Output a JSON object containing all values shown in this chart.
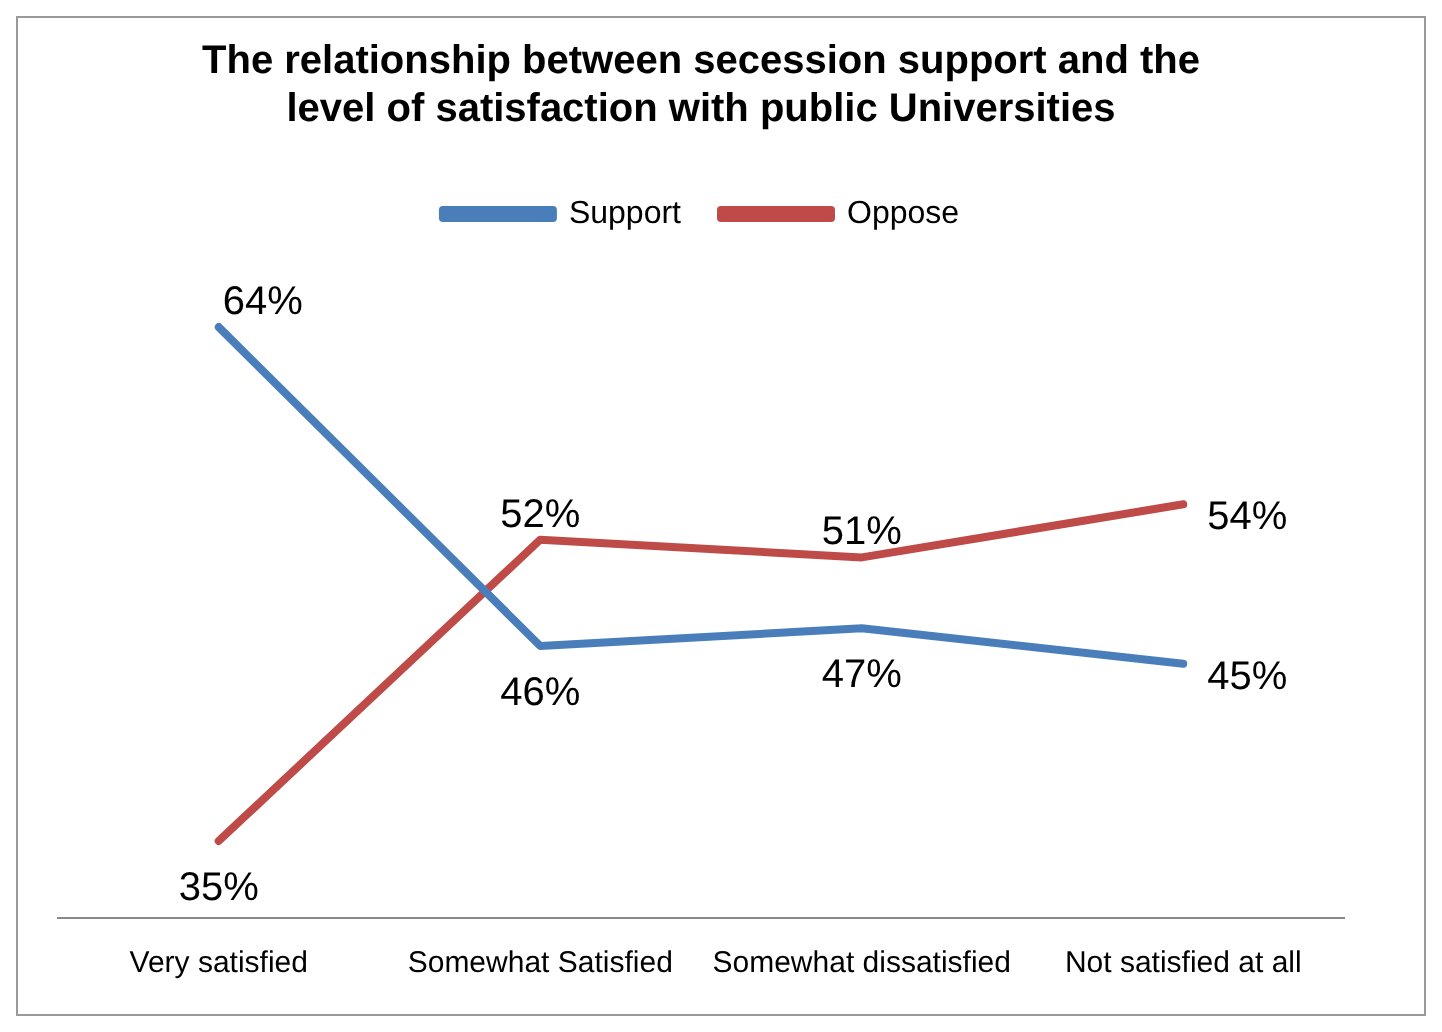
{
  "chart_data": {
    "type": "line",
    "title": "The relationship between secession support and the level of satisfaction with public Universities",
    "categories": [
      "Very satisfied",
      "Somewhat Satisfied",
      "Somewhat dissatisfied",
      "Not satisfied at all"
    ],
    "series": [
      {
        "name": "Support",
        "color": "#4a7ebb",
        "values": [
          64,
          46,
          47,
          45
        ],
        "value_labels": [
          "64%",
          "46%",
          "47%",
          "45%"
        ]
      },
      {
        "name": "Oppose",
        "color": "#be4b48",
        "values": [
          35,
          52,
          51,
          54
        ],
        "value_labels": [
          "35%",
          "52%",
          "51%",
          "54%"
        ]
      }
    ],
    "tick_labels": "x",
    "grid": false,
    "legend": "top",
    "marker": "none",
    "line_style": "solid"
  }
}
